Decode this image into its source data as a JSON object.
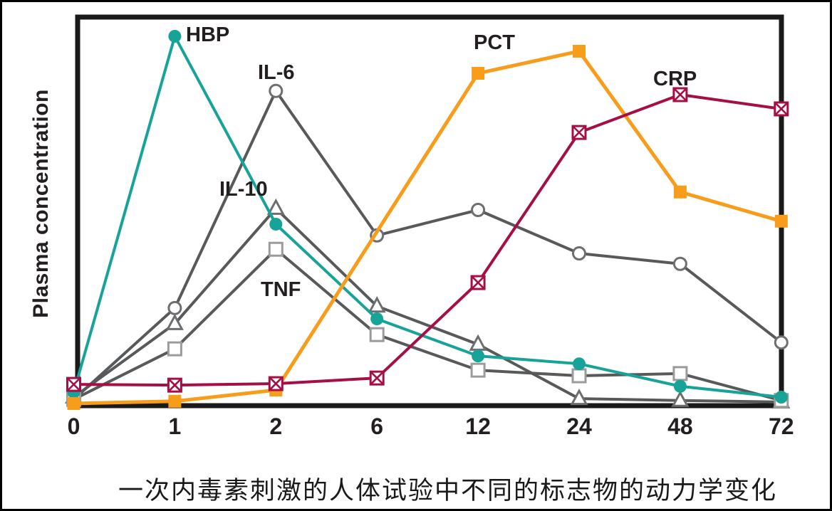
{
  "y_axis_label": "Plasma concentration",
  "caption": "一次内毒素刺激的人体试验中不同的标志物的动力学变化",
  "colors": {
    "frame": "#1a1a1a",
    "gray_series": "#58595b",
    "teal_series": "#17a398",
    "orange_series": "#f89c1c",
    "crimson_series": "#a60f45",
    "text": "#231f20"
  },
  "chart_data": {
    "type": "line",
    "title": "",
    "xlabel": "",
    "ylabel": "Plasma concentration",
    "ylim": [
      0,
      100
    ],
    "grid": false,
    "legend_position": "inline-labels",
    "categories": [
      0,
      1,
      2,
      6,
      12,
      24,
      48,
      72
    ],
    "x_tick_labels": [
      "0",
      "1",
      "2",
      "6",
      "12",
      "24",
      "48",
      "72"
    ],
    "y_units": "relative (unlabeled axis, 0-100 of plot height)",
    "series": [
      {
        "name": "IL-6",
        "marker": "open-circle",
        "color": "#58595b",
        "x": [
          0,
          1,
          2,
          6,
          12,
          24,
          48,
          72
        ],
        "values": [
          1.3,
          25.7,
          83.7,
          45.1,
          51.9,
          40.3,
          37.5,
          16.5
        ]
      },
      {
        "name": "IL-10",
        "marker": "open-triangle",
        "color": "#58595b",
        "x": [
          0,
          1,
          2,
          6,
          12,
          24,
          48,
          72
        ],
        "values": [
          1.9,
          21.5,
          52.3,
          26.2,
          16.0,
          1.5,
          1.0,
          0.6
        ]
      },
      {
        "name": "TNF",
        "marker": "open-square",
        "color": "#58595b",
        "x": [
          0,
          1,
          2,
          6,
          12,
          24,
          48,
          72
        ],
        "values": [
          1.3,
          14.8,
          41.4,
          18.6,
          9.1,
          7.6,
          8.2,
          1.0
        ]
      },
      {
        "name": "HBP",
        "marker": "filled-circle",
        "color": "#17a398",
        "x": [
          0,
          1,
          2,
          6,
          12,
          24,
          48,
          72
        ],
        "values": [
          3.2,
          98.3,
          48.1,
          22.8,
          12.9,
          10.8,
          4.8,
          1.9
        ]
      },
      {
        "name": "PCT",
        "marker": "filled-square",
        "color": "#f89c1c",
        "x": [
          0,
          1,
          2,
          12,
          24,
          48,
          72
        ],
        "values": [
          0.2,
          0.8,
          3.8,
          88.4,
          94.3,
          56.7,
          48.9
        ]
      },
      {
        "name": "CRP",
        "marker": "crossed-square",
        "color": "#a60f45",
        "x": [
          0,
          1,
          2,
          6,
          12,
          24,
          48,
          72
        ],
        "values": [
          5.3,
          5.1,
          5.5,
          7.0,
          32.5,
          72.6,
          82.7,
          78.9
        ]
      }
    ]
  }
}
